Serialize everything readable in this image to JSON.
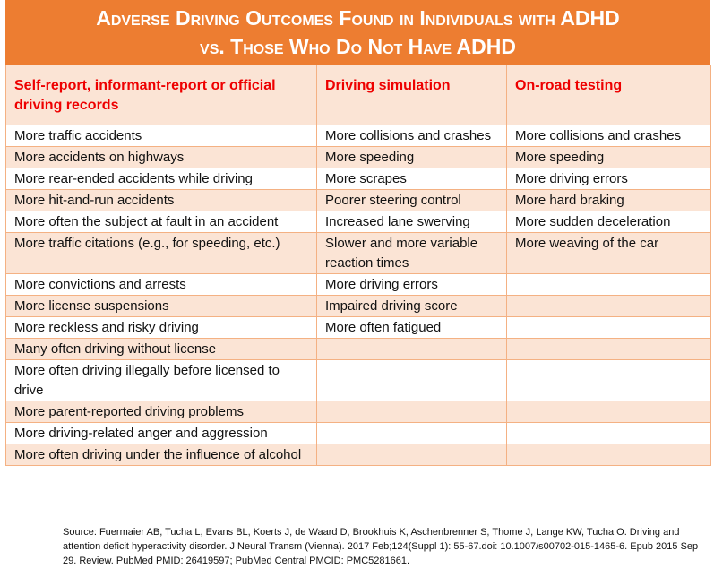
{
  "header": {
    "title_lines": [
      "Adverse Driving Outcomes Found in Individuals with ADHD",
      "vs. Those Who Do Not Have ADHD"
    ]
  },
  "table": {
    "columns": [
      "Self-report, informant-report or official driving records",
      "Driving simulation",
      "On-road testing"
    ],
    "rows": [
      [
        "More traffic accidents",
        "More collisions and crashes",
        "More collisions and crashes"
      ],
      [
        "More accidents on highways",
        "More speeding",
        "More speeding"
      ],
      [
        "More rear-ended accidents while driving",
        "More scrapes",
        "More driving errors"
      ],
      [
        "More hit-and-run accidents",
        "Poorer steering control",
        "More hard braking"
      ],
      [
        "More often the subject at fault in an accident",
        "Increased lane swerving",
        "More sudden deceleration"
      ],
      [
        "More traffic citations (e.g., for speeding, etc.)",
        "Slower and more variable reaction times",
        "More weaving of the car"
      ],
      [
        "More convictions and arrests",
        "More driving errors",
        null
      ],
      [
        "More license suspensions",
        "Impaired driving score",
        null
      ],
      [
        "More reckless and risky driving",
        "More often fatigued",
        null
      ],
      [
        "Many often driving without license",
        null,
        null
      ],
      [
        "More often driving illegally before licensed to drive",
        null,
        null
      ],
      [
        "More parent-reported driving problems",
        null,
        null
      ],
      [
        "More driving-related anger and aggression",
        null,
        null
      ],
      [
        "More often driving under the influence of alcohol",
        null,
        null
      ]
    ]
  },
  "source": "Source: Fuermaier AB, Tucha L, Evans BL, Koerts J, de Waard D, Brookhuis K, Aschenbrenner S, Thome J, Lange KW, Tucha O. Driving and attention deficit hyperactivity disorder. J Neural Transm (Vienna). 2017 Feb;124(Suppl 1): 55-67.doi: 10.1007/s00702-015-1465-6. Epub 2015 Sep 29. Review. PubMed PMID: 26419597; PubMed Central PMCID: PMC5281661."
}
